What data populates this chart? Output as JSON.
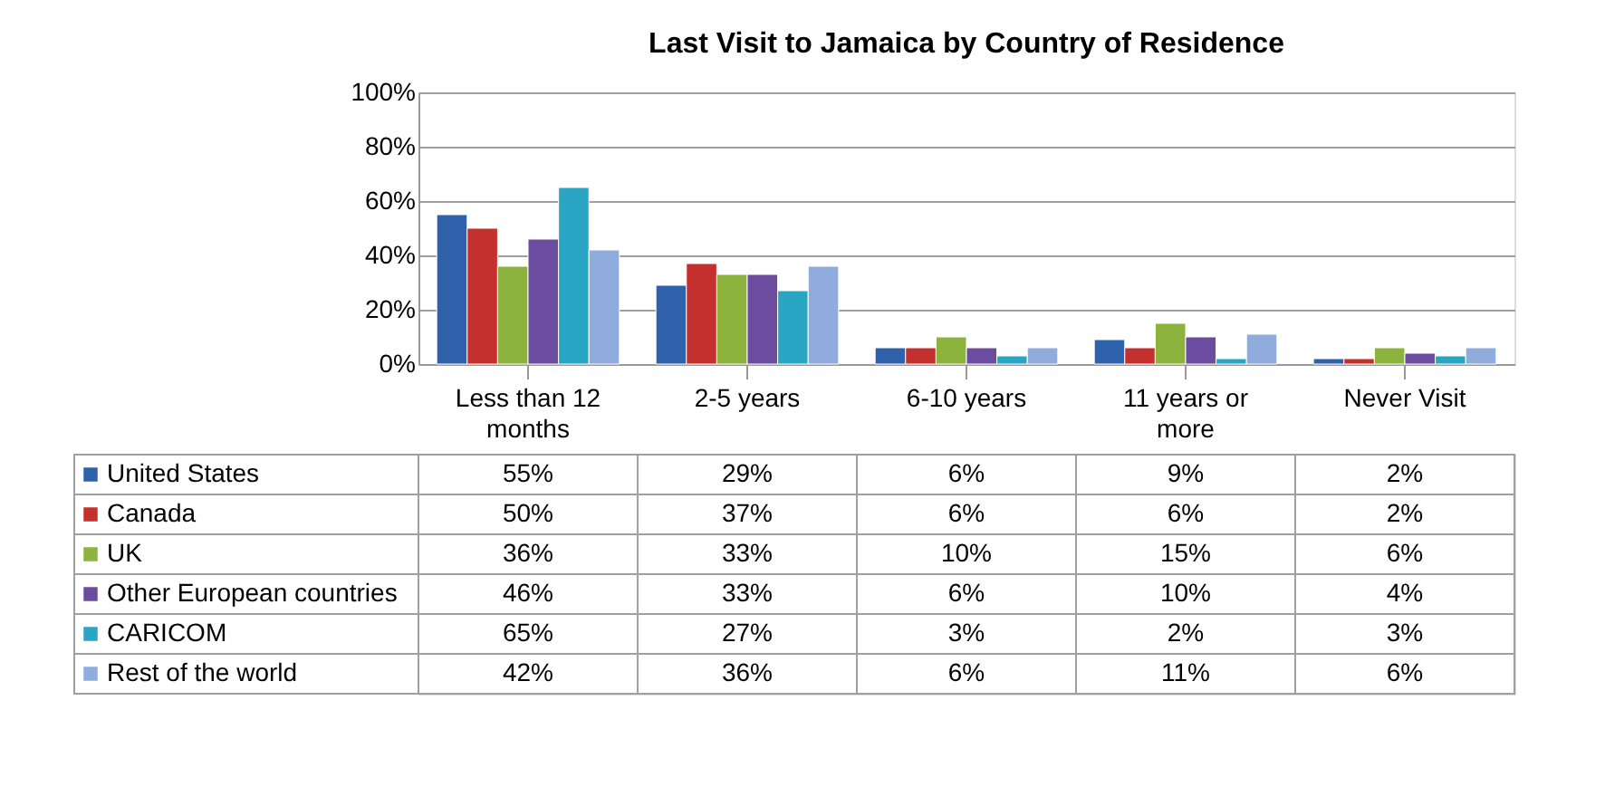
{
  "chart_data": {
    "type": "bar",
    "title": "Last Visit to Jamaica by Country of Residence",
    "categories": [
      "Less than  12 months",
      "2-5 years",
      "6-10 years",
      "11 years or more",
      "Never Visit"
    ],
    "series": [
      {
        "name": "United States",
        "color": "#2f62ab",
        "values": [
          55,
          29,
          6,
          9,
          2
        ],
        "value_labels": [
          "55%",
          "29%",
          "6%",
          "9%",
          "2%"
        ]
      },
      {
        "name": "Canada",
        "color": "#c3302e",
        "values": [
          50,
          37,
          6,
          6,
          2
        ],
        "value_labels": [
          "50%",
          "37%",
          "6%",
          "6%",
          "2%"
        ]
      },
      {
        "name": "UK",
        "color": "#8cb43c",
        "values": [
          36,
          33,
          10,
          15,
          6
        ],
        "value_labels": [
          "36%",
          "33%",
          "10%",
          "15%",
          "6%"
        ]
      },
      {
        "name": "Other European countries",
        "color": "#6b4c9e",
        "values": [
          46,
          33,
          6,
          10,
          4
        ],
        "value_labels": [
          "46%",
          "33%",
          "6%",
          "10%",
          "4%"
        ]
      },
      {
        "name": "CARICOM",
        "color": "#2ba5c4",
        "values": [
          65,
          27,
          3,
          2,
          3
        ],
        "value_labels": [
          "65%",
          "27%",
          "3%",
          "2%",
          "3%"
        ]
      },
      {
        "name": "Rest of the world",
        "color": "#8facdd",
        "values": [
          42,
          36,
          6,
          11,
          6
        ],
        "value_labels": [
          "42%",
          "36%",
          "6%",
          "11%",
          "6%"
        ]
      }
    ],
    "ylim": [
      0,
      100
    ],
    "yticks": [
      {
        "value": 0,
        "label": "0%"
      },
      {
        "value": 20,
        "label": "20%"
      },
      {
        "value": 40,
        "label": "40%"
      },
      {
        "value": 60,
        "label": "60%"
      },
      {
        "value": 80,
        "label": "80%"
      },
      {
        "value": 100,
        "label": "100%"
      }
    ],
    "grid": "y",
    "legend": "bottom"
  }
}
